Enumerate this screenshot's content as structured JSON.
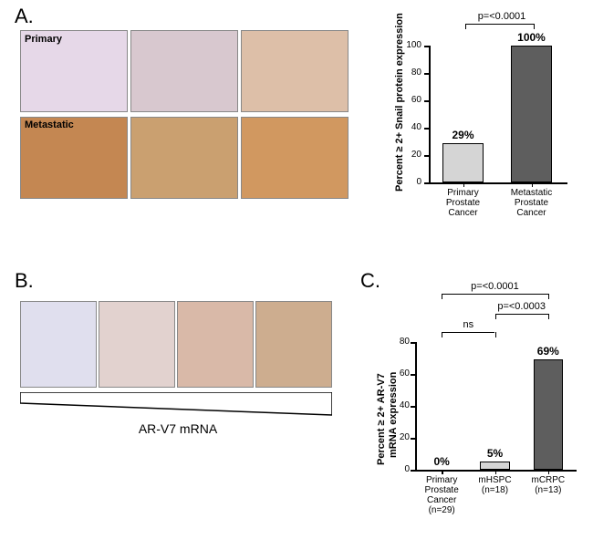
{
  "figure": {
    "panelA": {
      "label": "A.",
      "primary_label": "Primary",
      "metastatic_label": "Metastatic",
      "histology": {
        "primary_colors": [
          "#e6d8e8",
          "#d8c8cf",
          "#ddbfa8"
        ],
        "metastatic_colors": [
          "#c48752",
          "#caa070",
          "#d19860"
        ]
      },
      "chart": {
        "type": "bar",
        "y_title": "Percent ≥ 2+ Snail protein expression",
        "y_title_fontsize": 11,
        "ylim": [
          0,
          100
        ],
        "ytick_step": 20,
        "yticks": [
          0,
          20,
          40,
          60,
          80,
          100
        ],
        "categories": [
          "Primary\nProstate\nCancer",
          "Metastatic\nProstate\nCancer"
        ],
        "values": [
          29,
          100
        ],
        "bar_labels": [
          "29%",
          "100%"
        ],
        "bar_colors": [
          "#d5d5d5",
          "#5e5e5e"
        ],
        "bar_border": "#000000",
        "p_value": "p=<0.0001",
        "background_color": "#ffffff",
        "axis_color": "#000000",
        "bar_width_ratio": 0.6
      }
    },
    "panelB": {
      "label": "B.",
      "gradient_label": "AR-V7 mRNA",
      "histology_colors": [
        "#e0dfee",
        "#e2d2cf",
        "#d9b9a8",
        "#cdad8f"
      ]
    },
    "panelC": {
      "label": "C.",
      "chart": {
        "type": "bar",
        "y_title": "Percent ≥ 2+ AR-V7\nmRNA expression",
        "y_title_fontsize": 11,
        "ylim": [
          0,
          80
        ],
        "ytick_step": 20,
        "yticks": [
          0,
          20,
          40,
          60,
          80
        ],
        "categories": [
          "Primary\nProstate\nCancer\n(n=29)",
          "mHSPC\n(n=18)",
          "mCRPC\n(n=13)"
        ],
        "values": [
          0,
          5,
          69
        ],
        "bar_labels": [
          "0%",
          "5%",
          "69%"
        ],
        "bar_colors": [
          "#d5d5d5",
          "#d5d5d5",
          "#5e5e5e"
        ],
        "bar_border": "#000000",
        "comparisons": [
          {
            "from": 0,
            "to": 1,
            "label": "ns"
          },
          {
            "from": 1,
            "to": 2,
            "label": "p=<0.0003"
          },
          {
            "from": 0,
            "to": 2,
            "label": "p=<0.0001"
          }
        ],
        "background_color": "#ffffff",
        "axis_color": "#000000",
        "bar_width_ratio": 0.55
      }
    }
  }
}
